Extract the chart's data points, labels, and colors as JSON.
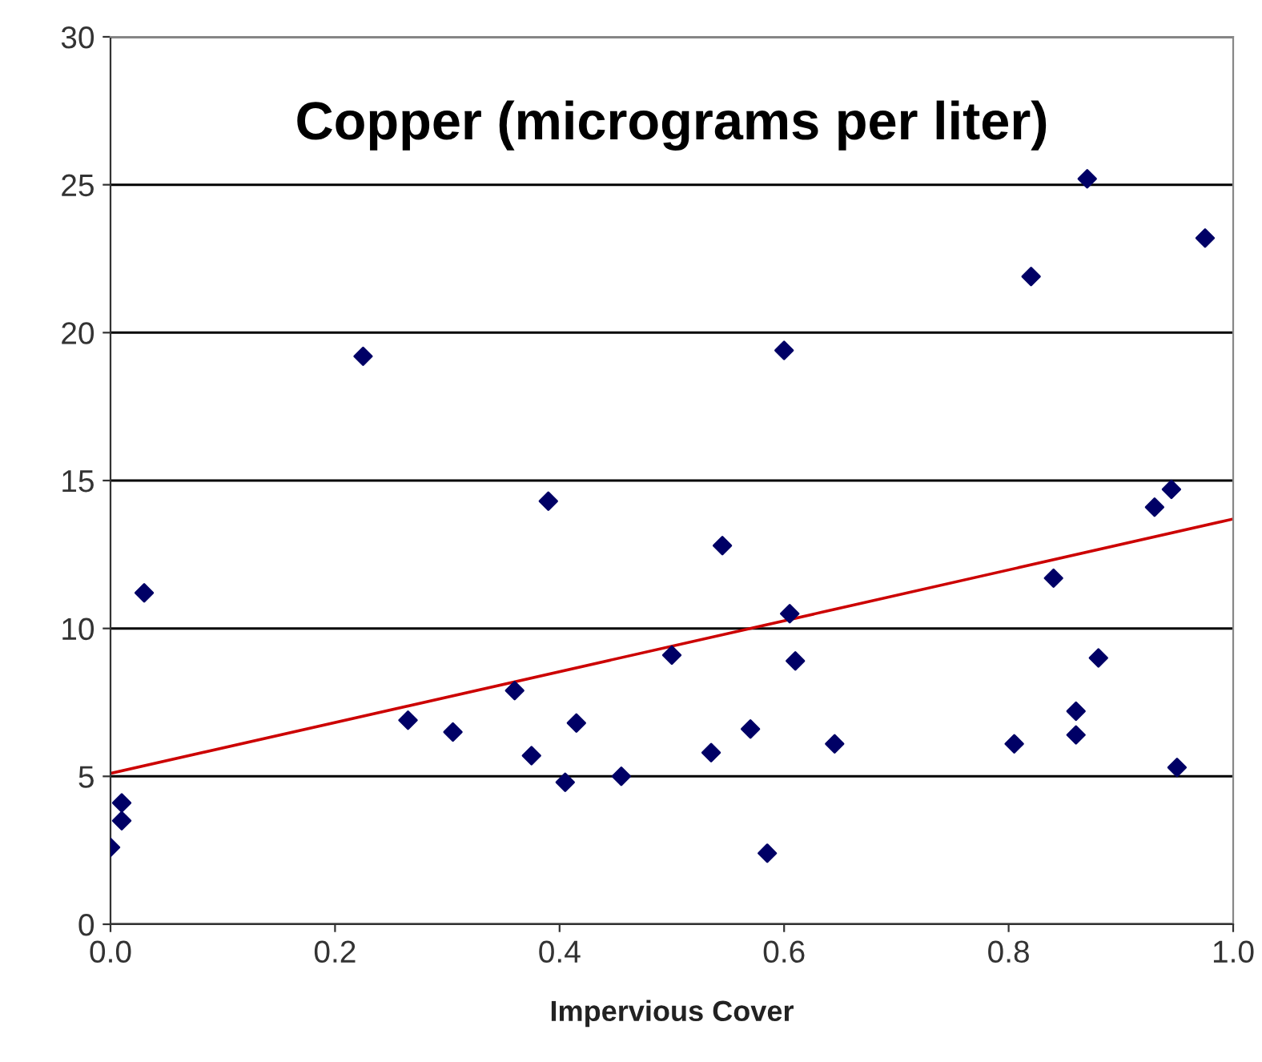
{
  "chart_data": {
    "type": "scatter",
    "title": "Copper (micrograms per liter)",
    "xlabel": "Impervious Cover",
    "xlim": [
      0,
      1
    ],
    "xticks": [
      {
        "value": 0,
        "label": "0.0"
      },
      {
        "value": 0.2,
        "label": "0.2"
      },
      {
        "value": 0.4,
        "label": "0.4"
      },
      {
        "value": 0.6,
        "label": "0.6"
      },
      {
        "value": 0.8,
        "label": "0.8"
      },
      {
        "value": 1,
        "label": "1.0"
      }
    ],
    "ylim": [
      0,
      30
    ],
    "yticks": [
      0,
      5,
      10,
      15,
      20,
      25,
      30
    ],
    "grid": "y",
    "series": [
      {
        "marker": "diamond",
        "color": "#000066",
        "x": [
          0.0,
          0.01,
          0.01,
          0.03,
          0.225,
          0.265,
          0.305,
          0.36,
          0.375,
          0.39,
          0.405,
          0.415,
          0.455,
          0.5,
          0.535,
          0.545,
          0.57,
          0.585,
          0.6,
          0.605,
          0.61,
          0.645,
          0.805,
          0.82,
          0.84,
          0.86,
          0.86,
          0.87,
          0.88,
          0.93,
          0.945,
          0.95,
          0.975
        ],
        "values": [
          2.6,
          4.1,
          3.5,
          11.2,
          19.2,
          6.9,
          6.5,
          7.9,
          5.7,
          14.3,
          4.8,
          6.8,
          5.0,
          9.1,
          5.8,
          12.8,
          6.6,
          2.4,
          19.4,
          10.5,
          8.9,
          6.1,
          6.1,
          21.9,
          11.7,
          6.4,
          7.2,
          25.2,
          9.0,
          14.1,
          14.7,
          5.3,
          23.2
        ]
      },
      {
        "type": "line",
        "color": "#cc0000",
        "x": [
          0,
          1
        ],
        "values": [
          5.1,
          13.7
        ]
      }
    ]
  }
}
